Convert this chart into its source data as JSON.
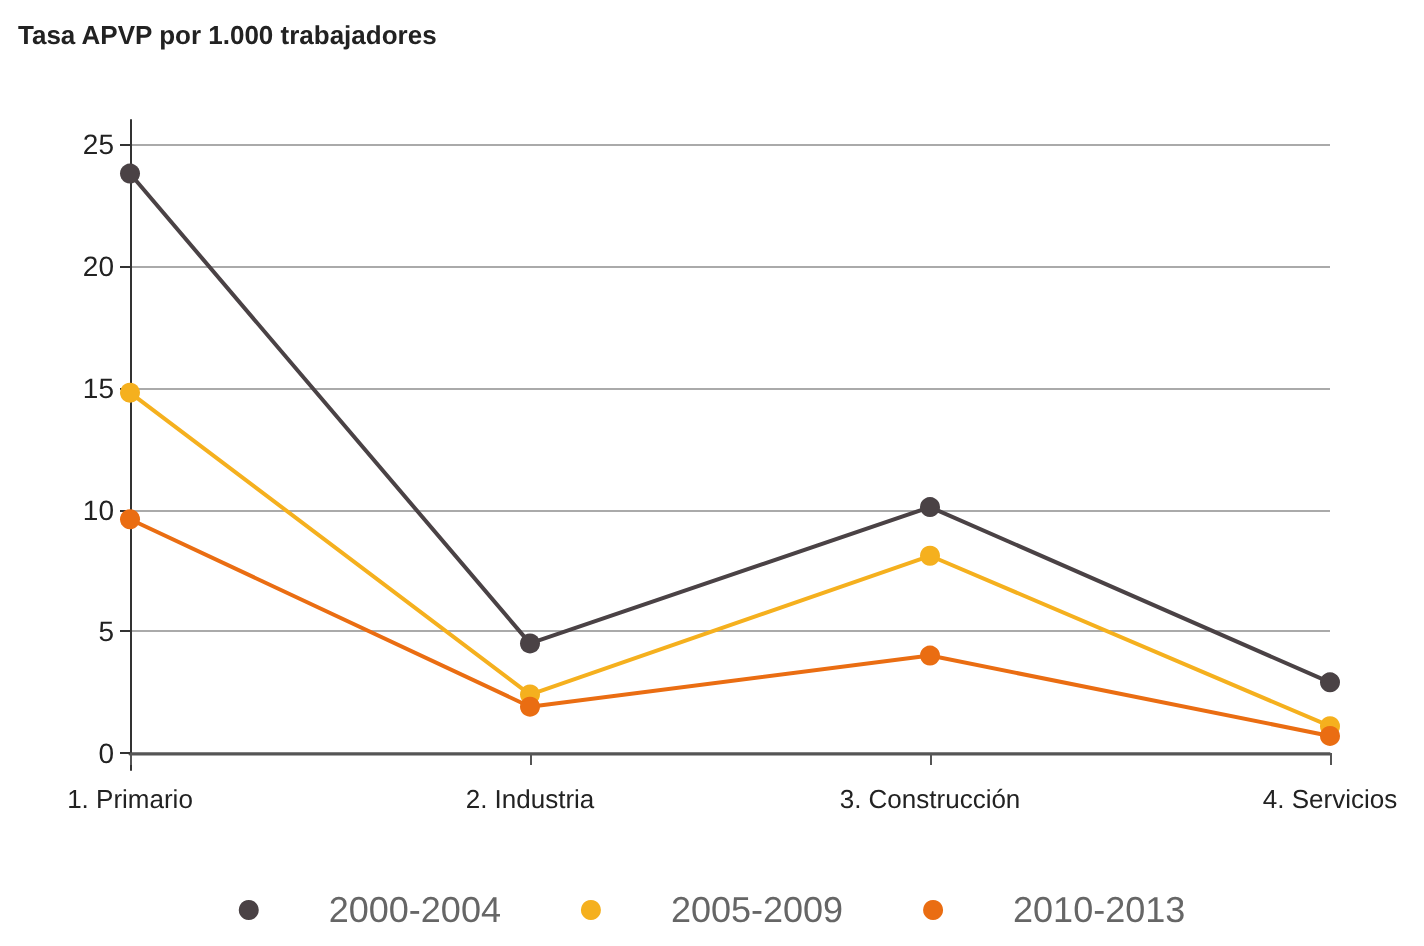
{
  "chart_data": {
    "type": "line",
    "title": "Tasa APVP por 1.000 trabajadores",
    "categories": [
      "1. Primario",
      "2. Industria",
      "3. Construcción",
      "4. Servicios"
    ],
    "series": [
      {
        "name": "2000-2004",
        "color": "#4a4245",
        "values": [
          23.8,
          4.5,
          10.1,
          2.9
        ]
      },
      {
        "name": "2005-2009",
        "color": "#f5b01e",
        "values": [
          14.8,
          2.4,
          8.1,
          1.1
        ]
      },
      {
        "name": "2010-2013",
        "color": "#ea6d12",
        "values": [
          9.6,
          1.9,
          4.0,
          0.7
        ]
      }
    ],
    "ylim": [
      -0.7,
      26
    ],
    "yticks": [
      0,
      5,
      10,
      15,
      20,
      25
    ],
    "grid": "y",
    "legend": "bottom",
    "marker": "circle",
    "line_style": "solid"
  }
}
